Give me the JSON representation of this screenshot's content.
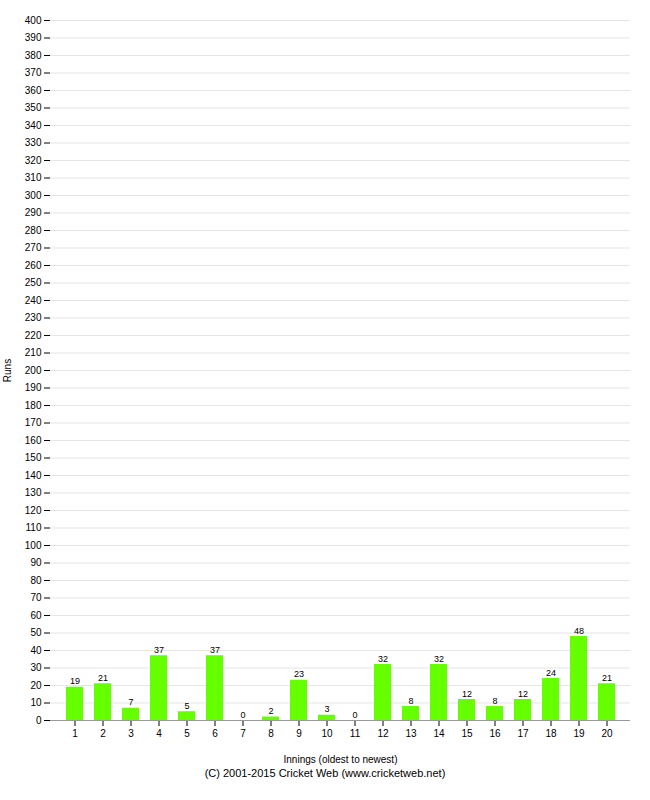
{
  "chart_data": {
    "type": "bar",
    "xlabel": "Innings (oldest to newest)",
    "ylabel": "Runs",
    "caption": "(C) 2001-2015 Cricket Web (www.cricketweb.net)",
    "categories": [
      1,
      2,
      3,
      4,
      5,
      6,
      7,
      8,
      9,
      10,
      11,
      12,
      13,
      14,
      15,
      16,
      17,
      18,
      19,
      20
    ],
    "values": [
      19,
      21,
      7,
      37,
      5,
      37,
      0,
      2,
      23,
      3,
      0,
      32,
      8,
      32,
      12,
      8,
      12,
      24,
      48,
      21
    ],
    "color": "#66ff00",
    "ylim": [
      0,
      400
    ],
    "yticks": [
      0,
      10,
      20,
      30,
      40,
      50,
      60,
      70,
      80,
      90,
      100,
      110,
      120,
      130,
      140,
      150,
      160,
      170,
      180,
      190,
      200,
      210,
      220,
      230,
      240,
      250,
      260,
      270,
      280,
      290,
      300,
      310,
      320,
      330,
      340,
      350,
      360,
      370,
      380,
      390,
      400
    ],
    "grid": true,
    "data_labels": true
  }
}
